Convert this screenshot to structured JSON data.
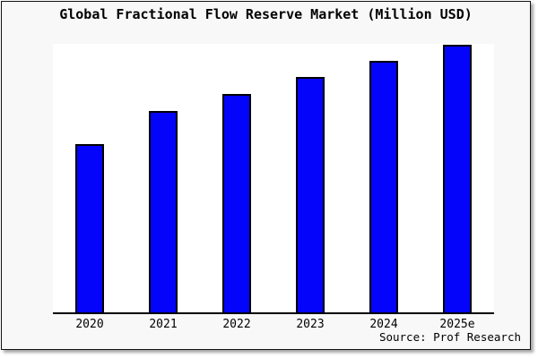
{
  "window": {
    "background": "#f8f8f8",
    "border_color": "#111111",
    "plot_background": "#ffffff"
  },
  "title": "Global Fractional Flow Reserve Market (Million USD)",
  "source": "Source: Prof Research",
  "chart_data": {
    "type": "bar",
    "title": "Global Fractional Flow Reserve Market (Million USD)",
    "categories": [
      "2020",
      "2021",
      "2022",
      "2023",
      "2024",
      "2025e"
    ],
    "values": [
      188,
      225,
      244,
      263,
      281,
      299
    ],
    "value_scale": "relative-units (no y-axis tick labels shown)",
    "ylim": [
      0,
      300
    ],
    "xlabel": "",
    "ylabel": "",
    "grid": false,
    "legend": false,
    "bar_color": "#0404fa",
    "bar_border_color": "#000000",
    "axis_color": "#000000",
    "annotation": "Source: Prof Research"
  }
}
